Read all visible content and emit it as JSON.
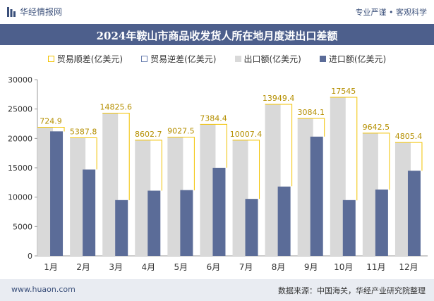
{
  "header": {
    "brand": "华经情报网",
    "tagline": "专业严谨 • 客观科学"
  },
  "chart_data": {
    "type": "bar",
    "title": "2024年鞍山市商品收发货人所在地月度进出口差额",
    "categories": [
      "1月",
      "2月",
      "3月",
      "4月",
      "5月",
      "6月",
      "7月",
      "8月",
      "9月",
      "10月",
      "11月",
      "12月"
    ],
    "series": [
      {
        "name": "贸易顺差(亿美元)",
        "values": [
          724.9,
          5387.8,
          14825.6,
          8602.7,
          9027.5,
          7384.4,
          10007.4,
          13949.4,
          3084.1,
          17545,
          9642.5,
          4805.4
        ],
        "color": "#f2c200"
      },
      {
        "name": "贸易逆差(亿美元)",
        "values": [
          0,
          0,
          0,
          0,
          0,
          0,
          0,
          0,
          0,
          0,
          0,
          0
        ],
        "color": "#6a7fb0"
      },
      {
        "name": "出口额(亿美元)",
        "values": [
          21900,
          20100,
          24300,
          19700,
          20200,
          22400,
          19700,
          25800,
          23400,
          27000,
          20900,
          19300
        ],
        "color": "#d9d9d9"
      },
      {
        "name": "进口额(亿美元)",
        "values": [
          21200,
          14700,
          9500,
          11100,
          11200,
          15000,
          9700,
          11800,
          20300,
          9500,
          11300,
          14500
        ],
        "color": "#5b6c98"
      }
    ],
    "data_labels": [
      "724.9",
      "5387.8",
      "14825.6",
      "8602.7",
      "9027.5",
      "7384.4",
      "10007.4",
      "13949.4",
      "3084.1",
      "17545",
      "9642.5",
      "4805.4"
    ],
    "yticks": [
      "0",
      "5000",
      "10000",
      "15000",
      "20000",
      "25000",
      "30000"
    ],
    "ylim": [
      0,
      30000
    ],
    "legend_position": "top"
  },
  "footer": {
    "website": "www.huaon.com",
    "source": "数据来源：中国海关，华经产业研究院整理"
  }
}
